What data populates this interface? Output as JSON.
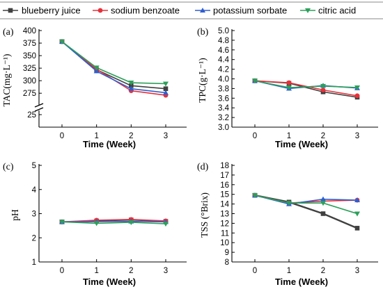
{
  "legend": [
    {
      "name": "blueberry juice",
      "color": "#404040",
      "marker": "square"
    },
    {
      "name": "sodium benzoate",
      "color": "#e8303a",
      "marker": "circle"
    },
    {
      "name": "potassium sorbate",
      "color": "#2f5fd0",
      "marker": "triangle"
    },
    {
      "name": "citric acid",
      "color": "#2ca05a",
      "marker": "triangle-down"
    }
  ],
  "chart_data": [
    {
      "panel": "(a)",
      "type": "line",
      "ylabel": "TAC(mg·L⁻¹)",
      "xlabel": "Time (Week)",
      "x": [
        0,
        1,
        2,
        3
      ],
      "xticks": [
        "0",
        "1",
        "2",
        "3"
      ],
      "axis_break": true,
      "ylim_lower": [
        0,
        25
      ],
      "yticks_lower": [
        25
      ],
      "ylim": [
        260,
        400
      ],
      "yticks": [
        275,
        300,
        325,
        350,
        375,
        400
      ],
      "series": [
        {
          "name": "blueberry juice",
          "values": [
            378,
            322,
            290,
            284
          ]
        },
        {
          "name": "sodium benzoate",
          "values": [
            378,
            323,
            280,
            271
          ]
        },
        {
          "name": "potassium sorbate",
          "values": [
            378,
            319,
            284,
            276
          ]
        },
        {
          "name": "citric acid",
          "values": [
            378,
            326,
            296,
            294
          ]
        }
      ]
    },
    {
      "panel": "(b)",
      "type": "line",
      "ylabel": "TPC(g·L⁻¹)",
      "xlabel": "Time (Week)",
      "x": [
        0,
        1,
        2,
        3
      ],
      "xticks": [
        "0",
        "1",
        "2",
        "3"
      ],
      "ylim": [
        3.0,
        5.0
      ],
      "yticks": [
        3.0,
        3.2,
        3.4,
        3.6,
        3.8,
        4.0,
        4.2,
        4.4,
        4.6,
        4.8,
        5.0
      ],
      "series": [
        {
          "name": "blueberry juice",
          "values": [
            3.96,
            3.91,
            3.73,
            3.62
          ]
        },
        {
          "name": "sodium benzoate",
          "values": [
            3.96,
            3.92,
            3.77,
            3.65
          ]
        },
        {
          "name": "potassium sorbate",
          "values": [
            3.96,
            3.8,
            3.86,
            3.81
          ]
        },
        {
          "name": "citric acid",
          "values": [
            3.96,
            3.82,
            3.85,
            3.82
          ]
        }
      ]
    },
    {
      "panel": "(c)",
      "type": "line",
      "ylabel": "pH",
      "xlabel": "Time (Week)",
      "x": [
        0,
        1,
        2,
        3
      ],
      "xticks": [
        "0",
        "1",
        "2",
        "3"
      ],
      "ylim": [
        1,
        5
      ],
      "yticks": [
        1,
        2,
        3,
        4,
        5
      ],
      "series": [
        {
          "name": "blueberry juice",
          "values": [
            2.66,
            2.7,
            2.74,
            2.68
          ]
        },
        {
          "name": "sodium benzoate",
          "values": [
            2.66,
            2.73,
            2.76,
            2.7
          ]
        },
        {
          "name": "potassium sorbate",
          "values": [
            2.66,
            2.67,
            2.68,
            2.66
          ]
        },
        {
          "name": "citric acid",
          "values": [
            2.66,
            2.6,
            2.64,
            2.58
          ]
        }
      ]
    },
    {
      "panel": "(d)",
      "type": "line",
      "ylabel": "TSS (°Brix)",
      "xlabel": "Time (Week)",
      "x": [
        0,
        1,
        2,
        3
      ],
      "xticks": [
        "0",
        "1",
        "2",
        "3"
      ],
      "ylim": [
        8,
        18
      ],
      "yticks": [
        8,
        9,
        10,
        11,
        12,
        13,
        14,
        15,
        16,
        17,
        18
      ],
      "series": [
        {
          "name": "blueberry juice",
          "values": [
            14.9,
            14.2,
            13.0,
            11.5
          ]
        },
        {
          "name": "sodium benzoate",
          "values": [
            14.9,
            14.1,
            14.3,
            14.4
          ]
        },
        {
          "name": "potassium sorbate",
          "values": [
            14.9,
            14.0,
            14.5,
            14.4
          ]
        },
        {
          "name": "citric acid",
          "values": [
            14.9,
            14.1,
            14.1,
            13.0
          ]
        }
      ]
    }
  ]
}
